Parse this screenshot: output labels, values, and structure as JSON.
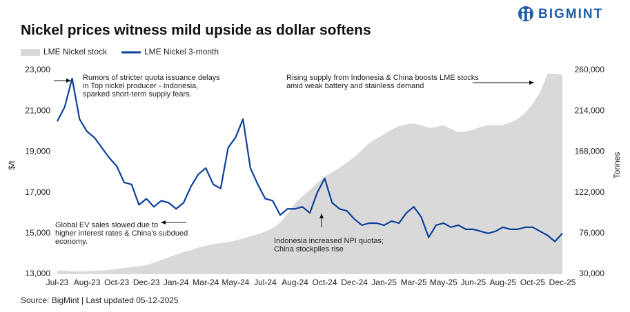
{
  "brand": "BIGMINT",
  "source": "Source: BigMint | Last updated 05-12-2025",
  "chart_data": {
    "type": "line",
    "title": "Nickel prices witness mild upside as dollar softens",
    "y_label": "$/t",
    "y2_label": "Tonnes",
    "grid": false,
    "legend": "top-left",
    "categories": [
      "Jul-23",
      null,
      null,
      null,
      "Aug-23",
      null,
      null,
      null,
      "Oct-23",
      null,
      null,
      null,
      "Dec-23",
      null,
      null,
      null,
      "Jan-24",
      null,
      null,
      null,
      "Mar-24",
      null,
      null,
      null,
      "May-24",
      null,
      null,
      null,
      "Jul-24",
      null,
      null,
      null,
      "Aug-24",
      null,
      null,
      null,
      "Oct-24",
      null,
      null,
      null,
      "Dec-24",
      null,
      null,
      null,
      "Jan-25",
      null,
      null,
      null,
      "Mar-25",
      null,
      null,
      null,
      "May-25",
      null,
      null,
      null,
      "Jun-25",
      null,
      null,
      null,
      "Aug-25",
      null,
      null,
      null,
      "Oct-25",
      null,
      null,
      null,
      "Dec-25"
    ],
    "ylim": [
      13000,
      23000
    ],
    "yticks": [
      {
        "value": 13000,
        "label": "13,000"
      },
      {
        "value": 15000,
        "label": "15,000"
      },
      {
        "value": 17000,
        "label": "17,000"
      },
      {
        "value": 19000,
        "label": "19,000"
      },
      {
        "value": 21000,
        "label": "21,000"
      },
      {
        "value": 23000,
        "label": "23,000"
      }
    ],
    "y2lim": [
      30000,
      260000
    ],
    "y2ticks": [
      {
        "value": 30000,
        "label": "30,000"
      },
      {
        "value": 76000,
        "label": "76,000"
      },
      {
        "value": 122000,
        "label": "122,000"
      },
      {
        "value": 168000,
        "label": "168,000"
      },
      {
        "value": 214000,
        "label": "214,000"
      },
      {
        "value": 260000,
        "label": "260,000"
      }
    ],
    "series": [
      {
        "name": "LME Nickel stock",
        "kind": "area",
        "axis": "y2",
        "color": "#d9d9d9",
        "values": [
          34000,
          34000,
          33000,
          33000,
          33000,
          34000,
          34000,
          35000,
          36000,
          37000,
          38000,
          39000,
          40000,
          43000,
          46000,
          49000,
          52000,
          55000,
          57000,
          60000,
          62000,
          64000,
          65000,
          66000,
          68000,
          70000,
          73000,
          75000,
          78000,
          82000,
          88000,
          98000,
          110000,
          118000,
          125000,
          133000,
          140000,
          145000,
          150000,
          156000,
          162000,
          170000,
          178000,
          183000,
          188000,
          193000,
          197000,
          199000,
          200000,
          198000,
          195000,
          196000,
          198000,
          194000,
          190000,
          191000,
          193000,
          196000,
          198000,
          198000,
          198000,
          201000,
          205000,
          212000,
          222000,
          235000,
          256000,
          256000,
          255000
        ]
      },
      {
        "name": "LME Nickel 3-month",
        "kind": "line",
        "axis": "y",
        "color": "#0b3f9a",
        "values": [
          20500,
          21200,
          22600,
          20600,
          20000,
          19700,
          19200,
          18700,
          18300,
          17500,
          17400,
          16400,
          16700,
          16300,
          16600,
          16500,
          16200,
          16500,
          17300,
          17900,
          18200,
          17400,
          17200,
          19200,
          19700,
          20600,
          18200,
          17400,
          16700,
          16600,
          15900,
          16200,
          16200,
          16300,
          16000,
          17000,
          17700,
          16500,
          16200,
          16100,
          15700,
          15400,
          15500,
          15500,
          15400,
          15600,
          15500,
          16000,
          16300,
          15800,
          14800,
          15400,
          15500,
          15300,
          15400,
          15200,
          15200,
          15100,
          15000,
          15100,
          15300,
          15200,
          15200,
          15300,
          15300,
          15100,
          14900,
          14600,
          15000
        ]
      }
    ],
    "annotations": [
      {
        "lines": [
          "Rumors of stricter quota issuance delays",
          "in Top nickel producer - Indonesia,",
          "sparked short-term supply fears."
        ]
      },
      {
        "lines": [
          "Rising supply from Indonesia & China boosts LME stocks",
          "amid weak battery and stainless demand"
        ]
      },
      {
        "lines": [
          "Global EV sales slowed due to",
          "higher interest rates & China's subdued",
          "economy."
        ]
      },
      {
        "lines": [
          "Indonesia increased NPI quotas;",
          "China stockpiles rise"
        ]
      }
    ]
  }
}
